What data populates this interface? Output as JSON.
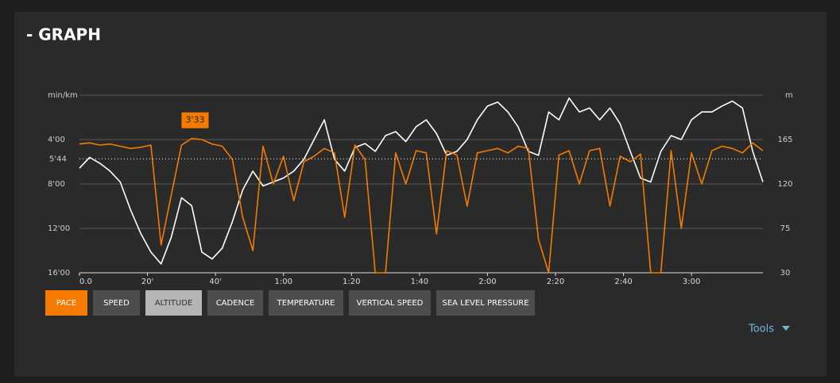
{
  "header": {
    "title": "- GRAPH"
  },
  "buttons": [
    "PACE",
    "SPEED",
    "ALTITUDE",
    "CADENCE",
    "TEMPERATURE",
    "VERTICAL SPEED",
    "SEA LEVEL PRESSURE"
  ],
  "tools": "Tools",
  "chart_data": {
    "type": "line",
    "y_label": "min/km",
    "y2_label": "m",
    "x": [
      0,
      3,
      6,
      9,
      12,
      15,
      18,
      21,
      24,
      27,
      30,
      33,
      36,
      39,
      42,
      45,
      48,
      51,
      54,
      57,
      60,
      63,
      66,
      69,
      72,
      75,
      78,
      81,
      84,
      87,
      90,
      93,
      96,
      99,
      102,
      105,
      108,
      111,
      114,
      117,
      120,
      123,
      126,
      129,
      132,
      135,
      138,
      141,
      144,
      147,
      150,
      153,
      156,
      159,
      162,
      165,
      168,
      171,
      174,
      177,
      180,
      183,
      186,
      189,
      192,
      195,
      198,
      201
    ],
    "xlim": [
      0,
      201
    ],
    "xticks": [
      {
        "value": 0,
        "label": "0.0"
      },
      {
        "value": 20,
        "label": "20'"
      },
      {
        "value": 40,
        "label": "40'"
      },
      {
        "value": 60,
        "label": "1:00"
      },
      {
        "value": 80,
        "label": "1:20"
      },
      {
        "value": 100,
        "label": "1:40"
      },
      {
        "value": 120,
        "label": "2:00"
      },
      {
        "value": 140,
        "label": "2:20"
      },
      {
        "value": 160,
        "label": "2:40"
      },
      {
        "value": 180,
        "label": "3:00"
      }
    ],
    "ylim": [
      0,
      16
    ],
    "y_inverted": true,
    "yticks": [
      {
        "value": 4,
        "label": "4'00"
      },
      {
        "value": 8,
        "label": "8'00"
      },
      {
        "value": 12,
        "label": "12'00"
      },
      {
        "value": 16,
        "label": "16'00"
      }
    ],
    "y2lim": [
      30,
      210
    ],
    "y2ticks": [
      165,
      120,
      75,
      30
    ],
    "grid": true,
    "series": [
      {
        "color": "#ffffff",
        "axis": "y2",
        "values": [
          136,
          147,
          141,
          133,
          122,
          94,
          70,
          51,
          39,
          66,
          106,
          98,
          51,
          44,
          55,
          82,
          114,
          133,
          118,
          122,
          126,
          133,
          145,
          165,
          185,
          145,
          133,
          157,
          161,
          153,
          169,
          173,
          163,
          178,
          185,
          171,
          149,
          153,
          165,
          185,
          199,
          203,
          193,
          178,
          153,
          149,
          193,
          185,
          207,
          193,
          197,
          185,
          197,
          181,
          153,
          126,
          122,
          153,
          169,
          165,
          185,
          193,
          193,
          199,
          204,
          197,
          153,
          122
        ]
      },
      {
        "color": "#f47a00",
        "values": [
          4.4,
          4.3,
          4.5,
          4.4,
          4.6,
          4.8,
          4.7,
          4.5,
          13.5,
          9,
          4.5,
          3.9,
          4.0,
          4.4,
          4.6,
          5.8,
          11,
          14,
          4.6,
          8,
          5.5,
          9.5,
          6,
          5.5,
          4.8,
          5.2,
          11,
          4.5,
          5.8,
          16,
          16,
          5.2,
          8,
          5.0,
          5.2,
          12.5,
          5.0,
          5.4,
          10,
          5.2,
          5.0,
          4.8,
          5.2,
          4.6,
          4.8,
          13,
          16,
          5.4,
          5.0,
          8,
          5.0,
          4.8,
          10,
          5.5,
          6.0,
          5.3,
          16,
          16,
          5.0,
          12,
          5.2,
          8,
          5.0,
          4.6,
          4.8,
          5.2,
          4.3,
          5.0
        ]
      }
    ],
    "average": {
      "value": 5.733,
      "label": "5'44"
    },
    "annotation": {
      "x": 34,
      "value": 3.55,
      "label": "3'33"
    }
  }
}
